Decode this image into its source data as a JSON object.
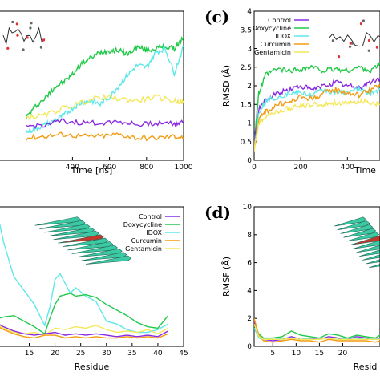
{
  "colors": {
    "Control": "#8a2be2",
    "Doxycycline": "#22c94a",
    "IDOX": "#5ee8e8",
    "Curcumin": "#f39c12",
    "Gentamicin": "#f3e85a"
  },
  "chart_data": [
    {
      "id": "a",
      "type": "line",
      "letter": "",
      "xlabel": "Time [ns]",
      "ylabel": "",
      "xlim": [
        0,
        1000
      ],
      "xticks": [
        "400",
        "600",
        "800",
        "1000"
      ],
      "xtick_values": [
        400,
        600,
        800,
        1000
      ],
      "ylim": [
        0,
        4
      ],
      "yticks": [],
      "legend": [],
      "series": [
        {
          "name": "Doxycycline",
          "x": [
            150,
            200,
            260,
            300,
            350,
            400,
            450,
            500,
            550,
            600,
            650,
            700,
            750,
            800,
            850,
            900,
            950,
            1000
          ],
          "values": [
            1.15,
            1.45,
            1.7,
            1.95,
            2.1,
            2.3,
            2.6,
            2.75,
            2.9,
            2.95,
            2.95,
            2.85,
            3.05,
            2.95,
            3.0,
            3.05,
            3.0,
            3.3
          ]
        },
        {
          "name": "IDOX",
          "x": [
            150,
            200,
            250,
            300,
            350,
            400,
            450,
            500,
            550,
            600,
            650,
            700,
            750,
            800,
            850,
            900,
            950,
            1000
          ],
          "values": [
            0.75,
            0.85,
            0.95,
            1.05,
            1.2,
            1.4,
            1.55,
            1.6,
            1.5,
            1.7,
            2.0,
            2.3,
            2.55,
            2.5,
            2.9,
            3.0,
            2.35,
            3.05
          ]
        },
        {
          "name": "Gentamicin",
          "x": [
            150,
            250,
            350,
            450,
            550,
            650,
            750,
            850,
            950,
            1000
          ],
          "values": [
            1.15,
            1.2,
            1.4,
            1.55,
            1.7,
            1.65,
            1.6,
            1.7,
            1.6,
            1.55
          ]
        },
        {
          "name": "Control",
          "x": [
            150,
            250,
            350,
            450,
            550,
            650,
            750,
            850,
            950,
            1000
          ],
          "values": [
            0.9,
            0.95,
            1.05,
            1.0,
            1.0,
            1.05,
            0.95,
            1.0,
            1.0,
            1.0
          ]
        },
        {
          "name": "Curcumin",
          "x": [
            150,
            250,
            350,
            450,
            550,
            650,
            750,
            850,
            950,
            1000
          ],
          "values": [
            0.6,
            0.65,
            0.7,
            0.65,
            0.65,
            0.7,
            0.6,
            0.6,
            0.65,
            0.6
          ]
        }
      ]
    },
    {
      "id": "c",
      "type": "line",
      "letter": "(c)",
      "xlabel": "Time",
      "ylabel": "RMSD (Å)",
      "xlim": [
        0,
        540
      ],
      "xticks": [
        "0",
        "200",
        "400"
      ],
      "xtick_values": [
        0,
        200,
        400
      ],
      "ylim": [
        0,
        4
      ],
      "yticks": [
        "0",
        "0.5",
        "1",
        "1.5",
        "2",
        "2.5",
        "3",
        "3.5",
        "4"
      ],
      "ytick_values": [
        0,
        0.5,
        1,
        1.5,
        2,
        2.5,
        3,
        3.5,
        4
      ],
      "legend": [
        "Control",
        "Doxycycline",
        "IDOX",
        "Curcumin",
        "Gentamicin"
      ],
      "series": [
        {
          "name": "Doxycycline",
          "x": [
            0,
            20,
            50,
            100,
            150,
            200,
            250,
            300,
            350,
            400,
            450,
            500,
            540
          ],
          "values": [
            0.5,
            1.8,
            2.3,
            2.45,
            2.4,
            2.45,
            2.5,
            2.4,
            2.45,
            2.4,
            2.5,
            2.4,
            2.6
          ]
        },
        {
          "name": "Control",
          "x": [
            0,
            20,
            50,
            100,
            150,
            200,
            250,
            300,
            350,
            400,
            450,
            500,
            540
          ],
          "values": [
            0.4,
            1.4,
            1.6,
            1.8,
            1.9,
            2.0,
            1.9,
            2.0,
            2.1,
            2.0,
            1.95,
            2.1,
            2.2
          ]
        },
        {
          "name": "IDOX",
          "x": [
            0,
            20,
            50,
            100,
            150,
            200,
            250,
            300,
            350,
            400,
            450,
            500,
            540
          ],
          "values": [
            0.3,
            1.3,
            1.6,
            1.7,
            1.8,
            1.8,
            1.75,
            1.9,
            1.8,
            1.85,
            1.9,
            1.8,
            1.9
          ]
        },
        {
          "name": "Curcumin",
          "x": [
            0,
            20,
            50,
            100,
            150,
            200,
            250,
            300,
            350,
            400,
            450,
            500,
            540
          ],
          "values": [
            0.3,
            1.1,
            1.3,
            1.5,
            1.55,
            1.7,
            1.65,
            1.8,
            1.9,
            1.8,
            1.75,
            1.9,
            2.0
          ]
        },
        {
          "name": "Gentamicin",
          "x": [
            0,
            20,
            50,
            100,
            150,
            200,
            250,
            300,
            350,
            400,
            450,
            500,
            540
          ],
          "values": [
            0.3,
            1.0,
            1.2,
            1.3,
            1.4,
            1.45,
            1.5,
            1.5,
            1.55,
            1.5,
            1.6,
            1.55,
            1.5
          ]
        }
      ]
    },
    {
      "id": "b",
      "type": "line",
      "letter": "",
      "xlabel": "Residue",
      "ylabel": "",
      "xlim": [
        9,
        45
      ],
      "xticks": [
        "15",
        "20",
        "25",
        "30",
        "35",
        "40",
        "45"
      ],
      "xtick_values": [
        15,
        20,
        25,
        30,
        35,
        40,
        45
      ],
      "ylim": [
        0,
        10
      ],
      "yticks": [],
      "legend": [
        "Control",
        "Doxycycline",
        "IDOX",
        "Curcumin",
        "Gentamicin"
      ],
      "series": [
        {
          "name": "IDOX",
          "x": [
            9,
            10,
            12,
            14,
            16,
            18,
            19,
            20,
            21,
            22,
            23,
            24,
            26,
            28,
            30,
            32,
            34,
            36,
            38,
            40,
            42
          ],
          "values": [
            9.2,
            7.5,
            5.0,
            4.0,
            3.0,
            1.5,
            2.8,
            4.8,
            5.2,
            4.5,
            3.8,
            4.2,
            3.6,
            3.2,
            1.8,
            1.6,
            1.2,
            1.0,
            1.0,
            1.2,
            1.6
          ]
        },
        {
          "name": "Doxycycline",
          "x": [
            9,
            10,
            12,
            14,
            16,
            18,
            19,
            20,
            21,
            22,
            23,
            24,
            26,
            28,
            30,
            32,
            34,
            36,
            38,
            40,
            42
          ],
          "values": [
            2.0,
            2.1,
            2.2,
            1.8,
            1.4,
            0.9,
            2.0,
            3.0,
            3.6,
            3.7,
            3.8,
            3.6,
            3.7,
            3.5,
            3.0,
            2.6,
            2.2,
            1.7,
            1.4,
            1.3,
            2.2
          ]
        },
        {
          "name": "Gentamicin",
          "x": [
            9,
            10,
            12,
            14,
            16,
            18,
            20,
            22,
            24,
            26,
            28,
            30,
            32,
            34,
            36,
            38,
            40,
            42
          ],
          "values": [
            1.5,
            1.3,
            1.0,
            0.9,
            1.0,
            0.8,
            1.3,
            1.2,
            1.4,
            1.3,
            1.5,
            1.2,
            1.0,
            1.1,
            1.0,
            1.2,
            0.9,
            1.3
          ]
        },
        {
          "name": "Control",
          "x": [
            9,
            10,
            12,
            14,
            16,
            18,
            20,
            22,
            24,
            26,
            28,
            30,
            32,
            34,
            36,
            38,
            40,
            42
          ],
          "values": [
            1.6,
            1.4,
            1.1,
            0.9,
            0.8,
            0.9,
            1.0,
            0.8,
            0.9,
            0.8,
            0.9,
            0.8,
            0.7,
            0.8,
            0.7,
            0.8,
            0.7,
            1.1
          ]
        },
        {
          "name": "Curcumin",
          "x": [
            9,
            10,
            12,
            14,
            16,
            18,
            20,
            22,
            24,
            26,
            28,
            30,
            32,
            34,
            36,
            38,
            40,
            42
          ],
          "values": [
            1.4,
            1.2,
            0.9,
            0.7,
            0.6,
            0.8,
            0.8,
            0.6,
            0.7,
            0.6,
            0.7,
            0.6,
            0.6,
            0.7,
            0.6,
            0.7,
            0.6,
            0.9
          ]
        }
      ]
    },
    {
      "id": "d",
      "type": "line",
      "letter": "(d)",
      "xlabel": "Resid",
      "ylabel": "RMSF (Å)",
      "xlim": [
        1,
        28
      ],
      "xticks": [
        "5",
        "10",
        "15",
        "20"
      ],
      "xtick_values": [
        5,
        10,
        15,
        20
      ],
      "ylim": [
        0,
        10
      ],
      "yticks": [
        "0",
        "2",
        "4",
        "6",
        "8",
        "10"
      ],
      "ytick_values": [
        0,
        2,
        4,
        6,
        8,
        10
      ],
      "legend": [],
      "series": [
        {
          "name": "Control",
          "x": [
            1,
            2,
            3,
            5,
            7,
            9,
            11,
            13,
            15,
            17,
            19,
            21,
            23,
            25,
            27,
            28
          ],
          "values": [
            1.8,
            0.7,
            0.5,
            0.4,
            0.5,
            0.7,
            0.5,
            0.6,
            0.5,
            0.7,
            0.6,
            0.5,
            0.7,
            0.6,
            0.5,
            0.6
          ]
        },
        {
          "name": "Doxycycline",
          "x": [
            1,
            2,
            3,
            5,
            7,
            9,
            11,
            13,
            15,
            17,
            19,
            21,
            23,
            25,
            27,
            28
          ],
          "values": [
            1.5,
            0.9,
            0.6,
            0.6,
            0.7,
            1.1,
            0.8,
            0.7,
            0.6,
            0.9,
            0.8,
            0.6,
            0.8,
            0.7,
            0.6,
            0.8
          ]
        },
        {
          "name": "IDOX",
          "x": [
            1,
            2,
            3,
            5,
            7,
            9,
            11,
            13,
            15,
            17,
            19,
            21,
            23,
            25,
            27,
            28
          ],
          "values": [
            1.3,
            0.6,
            0.5,
            0.5,
            0.6,
            0.6,
            0.5,
            0.6,
            0.6,
            0.6,
            0.5,
            0.6,
            0.6,
            0.5,
            0.6,
            0.5
          ]
        },
        {
          "name": "Curcumin",
          "x": [
            1,
            2,
            3,
            5,
            7,
            9,
            11,
            13,
            15,
            17,
            19,
            21,
            23,
            25,
            27,
            28
          ],
          "values": [
            2.0,
            0.8,
            0.4,
            0.3,
            0.4,
            0.5,
            0.4,
            0.4,
            0.3,
            0.5,
            0.4,
            0.4,
            0.4,
            0.4,
            0.3,
            0.4
          ]
        },
        {
          "name": "Gentamicin",
          "x": [
            1,
            2,
            3,
            5,
            7,
            9,
            11,
            13,
            15,
            17,
            19,
            21,
            23,
            25,
            27,
            28
          ],
          "values": [
            1.6,
            0.7,
            0.5,
            0.5,
            0.5,
            0.6,
            0.5,
            0.5,
            0.5,
            0.6,
            0.5,
            0.5,
            0.5,
            0.5,
            0.5,
            0.5
          ]
        }
      ]
    }
  ]
}
